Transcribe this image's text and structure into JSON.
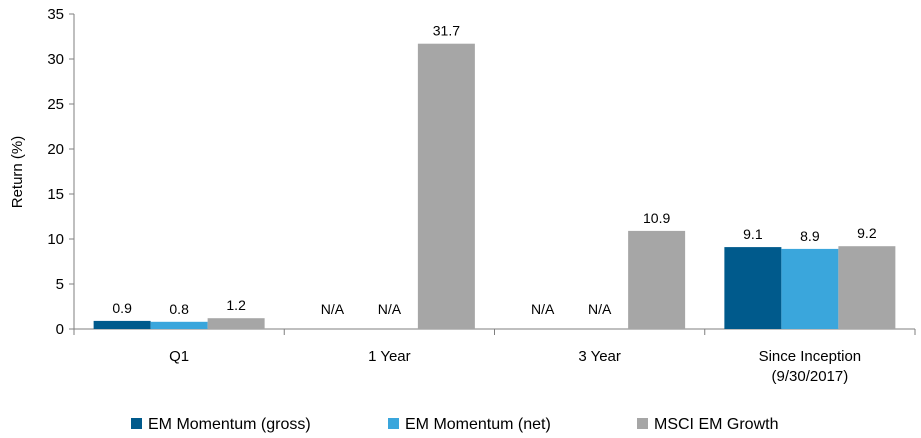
{
  "chart_data": {
    "type": "bar",
    "ylabel": "Return (%)",
    "xlabel": "",
    "ylim": [
      0,
      35
    ],
    "yticks": [
      0,
      5,
      10,
      15,
      20,
      25,
      30,
      35
    ],
    "grid": false,
    "legend_position": "bottom",
    "categories": [
      [
        "Q1"
      ],
      [
        "1 Year"
      ],
      [
        "3 Year"
      ],
      [
        "Since Inception",
        "(9/30/2017)"
      ]
    ],
    "series": [
      {
        "name": "EM Momentum (gross)",
        "color": "#005a8c",
        "values": [
          0.9,
          null,
          null,
          9.1
        ],
        "labels": [
          "0.9",
          "N/A",
          "N/A",
          "9.1"
        ]
      },
      {
        "name": "EM Momentum (net)",
        "color": "#3aa6dc",
        "values": [
          0.8,
          null,
          null,
          8.9
        ],
        "labels": [
          "0.8",
          "N/A",
          "N/A",
          "8.9"
        ]
      },
      {
        "name": "MSCI EM Growth",
        "color": "#a6a6a6",
        "values": [
          1.2,
          31.7,
          10.9,
          9.2
        ],
        "labels": [
          "1.2",
          "31.7",
          "10.9",
          "9.2"
        ]
      }
    ]
  }
}
